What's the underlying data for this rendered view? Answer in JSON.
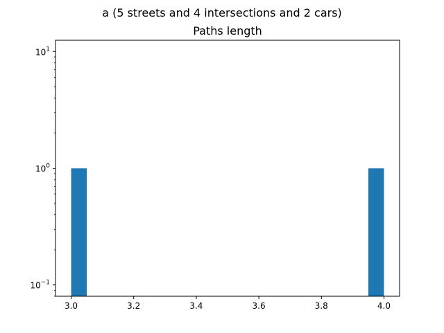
{
  "chart_data": {
    "type": "bar",
    "suptitle": "a (5 streets and 4 intersections and 2 cars)",
    "title": "Paths length",
    "xlabel": "",
    "ylabel": "",
    "x_scale": "linear",
    "y_scale": "log",
    "xlim": [
      2.95,
      4.05
    ],
    "ylim": [
      0.08,
      12.5
    ],
    "bin_width": 0.05,
    "bars": [
      {
        "x_start": 3.0,
        "x_end": 3.05,
        "count": 1
      },
      {
        "x_start": 3.95,
        "x_end": 4.0,
        "count": 1
      }
    ],
    "x_ticks": [
      {
        "value": 3.0,
        "label": "3.0"
      },
      {
        "value": 3.2,
        "label": "3.2"
      },
      {
        "value": 3.4,
        "label": "3.4"
      },
      {
        "value": 3.6,
        "label": "3.6"
      },
      {
        "value": 3.8,
        "label": "3.8"
      },
      {
        "value": 4.0,
        "label": "4.0"
      }
    ],
    "y_major_ticks": [
      {
        "value": 0.1,
        "base": "10",
        "exp": "−1"
      },
      {
        "value": 1,
        "base": "10",
        "exp": "0"
      },
      {
        "value": 10,
        "base": "10",
        "exp": "1"
      }
    ],
    "grid": false,
    "legend": "none",
    "bar_color": "#1f77b4"
  }
}
